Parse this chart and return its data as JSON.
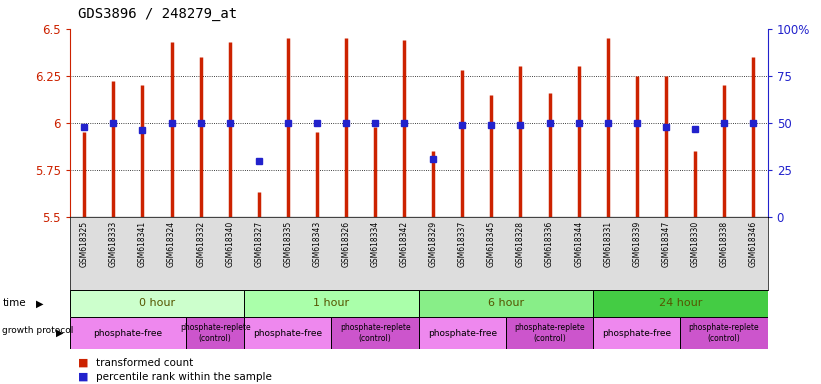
{
  "title": "GDS3896 / 248279_at",
  "samples": [
    "GSM618325",
    "GSM618333",
    "GSM618341",
    "GSM618324",
    "GSM618332",
    "GSM618340",
    "GSM618327",
    "GSM618335",
    "GSM618343",
    "GSM618326",
    "GSM618334",
    "GSM618342",
    "GSM618329",
    "GSM618337",
    "GSM618345",
    "GSM618328",
    "GSM618336",
    "GSM618344",
    "GSM618331",
    "GSM618339",
    "GSM618347",
    "GSM618330",
    "GSM618338",
    "GSM618346"
  ],
  "transformed_count": [
    5.95,
    6.22,
    6.2,
    6.43,
    6.35,
    6.43,
    5.63,
    6.45,
    5.95,
    6.45,
    5.98,
    6.44,
    5.85,
    6.28,
    6.15,
    6.3,
    6.16,
    6.3,
    6.45,
    6.25,
    6.25,
    5.85,
    6.2,
    6.35
  ],
  "percentile_rank": [
    48,
    50,
    46,
    50,
    50,
    50,
    30,
    50,
    50,
    50,
    50,
    50,
    31,
    49,
    49,
    49,
    50,
    50,
    50,
    50,
    48,
    47,
    50,
    50
  ],
  "time_groups": [
    {
      "label": "0 hour",
      "start": 0,
      "end": 6,
      "color": "#ccffcc"
    },
    {
      "label": "1 hour",
      "start": 6,
      "end": 12,
      "color": "#aaffaa"
    },
    {
      "label": "6 hour",
      "start": 12,
      "end": 18,
      "color": "#88ee88"
    },
    {
      "label": "24 hour",
      "start": 18,
      "end": 24,
      "color": "#44cc44"
    }
  ],
  "protocol_groups": [
    {
      "label": "phosphate-free",
      "start": 0,
      "end": 4,
      "color": "#ee88ee",
      "fontsize": 6.5
    },
    {
      "label": "phosphate-replete\n(control)",
      "start": 4,
      "end": 6,
      "color": "#cc55cc",
      "fontsize": 5.5
    },
    {
      "label": "phosphate-free",
      "start": 6,
      "end": 9,
      "color": "#ee88ee",
      "fontsize": 6.5
    },
    {
      "label": "phosphate-replete\n(control)",
      "start": 9,
      "end": 12,
      "color": "#cc55cc",
      "fontsize": 5.5
    },
    {
      "label": "phosphate-free",
      "start": 12,
      "end": 15,
      "color": "#ee88ee",
      "fontsize": 6.5
    },
    {
      "label": "phosphate-replete\n(control)",
      "start": 15,
      "end": 18,
      "color": "#cc55cc",
      "fontsize": 5.5
    },
    {
      "label": "phosphate-free",
      "start": 18,
      "end": 21,
      "color": "#ee88ee",
      "fontsize": 6.5
    },
    {
      "label": "phosphate-replete\n(control)",
      "start": 21,
      "end": 24,
      "color": "#cc55cc",
      "fontsize": 5.5
    }
  ],
  "ylim": [
    5.5,
    6.5
  ],
  "yticks": [
    5.5,
    5.75,
    6.0,
    6.25,
    6.5
  ],
  "ytick_labels": [
    "5.5",
    "5.75",
    "6",
    "6.25",
    "6.5"
  ],
  "right_yticks": [
    0,
    25,
    50,
    75,
    100
  ],
  "right_ytick_labels": [
    "0",
    "25",
    "50",
    "75",
    "100%"
  ],
  "grid_yticks": [
    5.75,
    6.0,
    6.25
  ],
  "bar_color": "#cc2200",
  "dot_color": "#2222cc",
  "left_axis_color": "#cc2200",
  "right_axis_color": "#2222cc",
  "bg_label_color": "#dddddd",
  "bar_linewidth": 2.5,
  "dot_markersize": 4
}
